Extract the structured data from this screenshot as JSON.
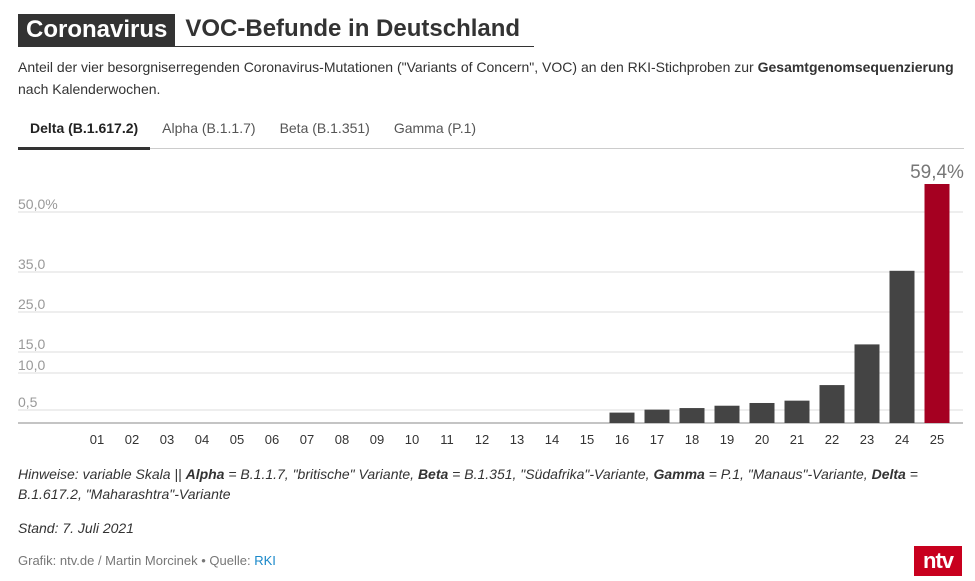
{
  "header": {
    "kicker": "Coronavirus",
    "title": "VOC-Befunde in Deutschland"
  },
  "subtitle": {
    "part1": "Anteil der vier besorgniserregenden Coronavirus-Mutationen (\"Variants of Concern\", VOC) an den RKI-Stichproben zur ",
    "bold": "Gesamtgenomsequenzierung",
    "part2": " nach Kalenderwochen."
  },
  "tabs": [
    {
      "label": "Delta (B.1.617.2)",
      "active": true
    },
    {
      "label": "Alpha (B.1.1.7)",
      "active": false
    },
    {
      "label": "Beta (B.1.351)",
      "active": false
    },
    {
      "label": "Gamma (P.1)",
      "active": false
    }
  ],
  "chart_data": {
    "type": "bar",
    "categories": [
      "01",
      "02",
      "03",
      "04",
      "05",
      "06",
      "07",
      "08",
      "09",
      "10",
      "11",
      "12",
      "13",
      "14",
      "15",
      "16",
      "17",
      "18",
      "19",
      "20",
      "21",
      "22",
      "23",
      "24",
      "25"
    ],
    "values": [
      0,
      0,
      0,
      0,
      0,
      0,
      0,
      0,
      0,
      0,
      0,
      0,
      0,
      0,
      0,
      0.4,
      0.6,
      1.0,
      1.6,
      2.3,
      2.9,
      6.9,
      16.9,
      35.3,
      59.4
    ],
    "highlight_index": 24,
    "value_label": "59,4%",
    "y_ticks": [
      0.5,
      10.0,
      15.0,
      25.0,
      35.0,
      50.0
    ],
    "y_tick_labels": [
      "0,5",
      "10,0",
      "15,0",
      "25,0",
      "35,0",
      "50,0%"
    ],
    "y_scale": "variable",
    "colors": {
      "bar": "#444444",
      "highlight": "#a50021",
      "grid": "#dddddd"
    }
  },
  "notes": {
    "t1": "Hinweise: variable Skala || ",
    "b1": "Alpha",
    "t2": " = B.1.1.7, \"britische\" Variante, ",
    "b2": "Beta",
    "t3": " = B.1.351, \"Südafrika\"-Variante, ",
    "b3": "Gamma",
    "t4": " = P.1, \"Manaus\"-Variante, ",
    "b4": "Delta",
    "t5": " = B.1.617.2, \"Maharashtra\"-Variante"
  },
  "stand": "Stand: 7. Juli 2021",
  "footer": {
    "credit": "Grafik: ntv.de / Martin Morcinek • Quelle: ",
    "source": "RKI"
  },
  "logo": "ntv"
}
